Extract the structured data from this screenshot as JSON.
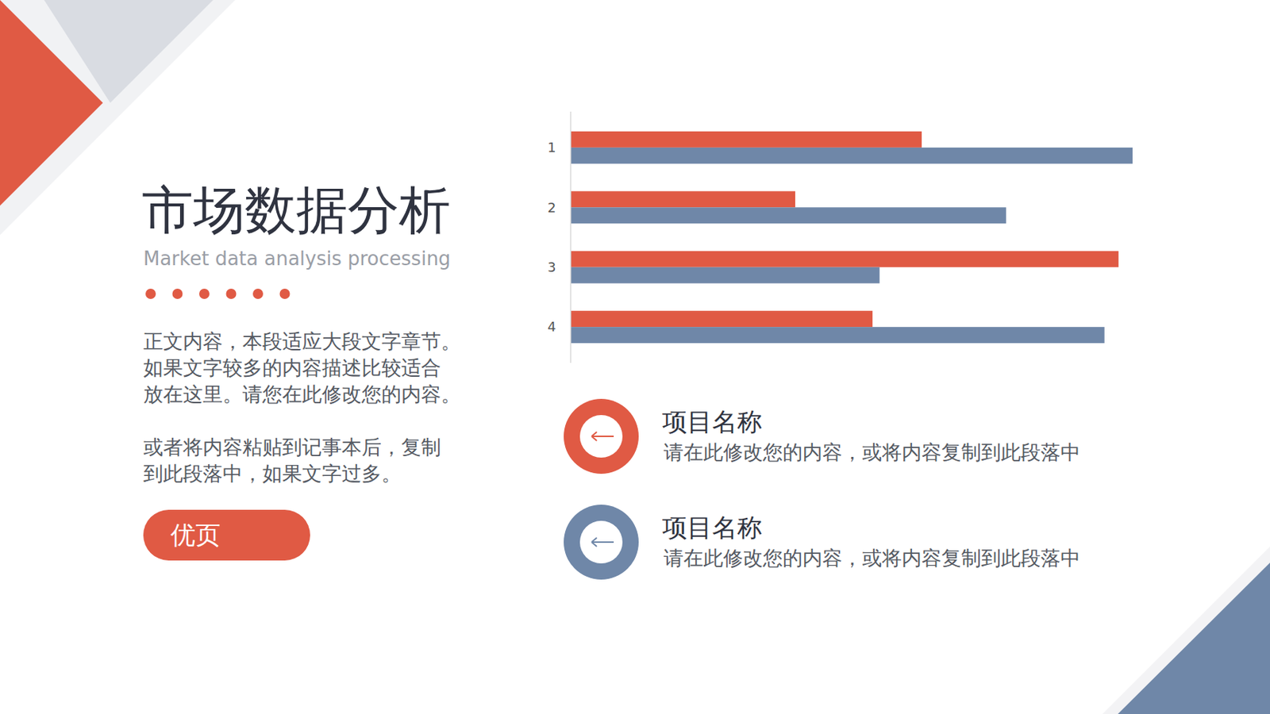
{
  "page": {
    "title": "市场数据分析",
    "subtitle": "Market data analysis processing",
    "body": [
      [
        "正文内容，本段适应大段文字章节。",
        "如果文字较多的内容描述比较适合",
        "放在这里。请您在此修改您的内容。"
      ],
      [
        "或者将内容粘贴到记事本后，复制",
        "到此段落中，如果文字过多。"
      ]
    ],
    "button": "优页",
    "items": [
      {
        "title": "项目名称",
        "text": "请在此修改您的内容，或将内容复制到此段落中"
      },
      {
        "title": "项目名称",
        "text": "请在此修改您的内容，或将内容复制到此段落中"
      }
    ]
  },
  "chart_data": {
    "type": "bar",
    "orientation": "horizontal",
    "categories": [
      "1",
      "2",
      "3",
      "4"
    ],
    "series": [
      {
        "color": "#E05A44",
        "values": [
          5.0,
          3.2,
          7.8,
          4.3
        ]
      },
      {
        "color": "#6F87A8",
        "values": [
          8.0,
          6.2,
          4.4,
          7.6
        ]
      }
    ],
    "xlim": [
      0,
      8
    ],
    "tick_labels": "y",
    "grid": false
  }
}
